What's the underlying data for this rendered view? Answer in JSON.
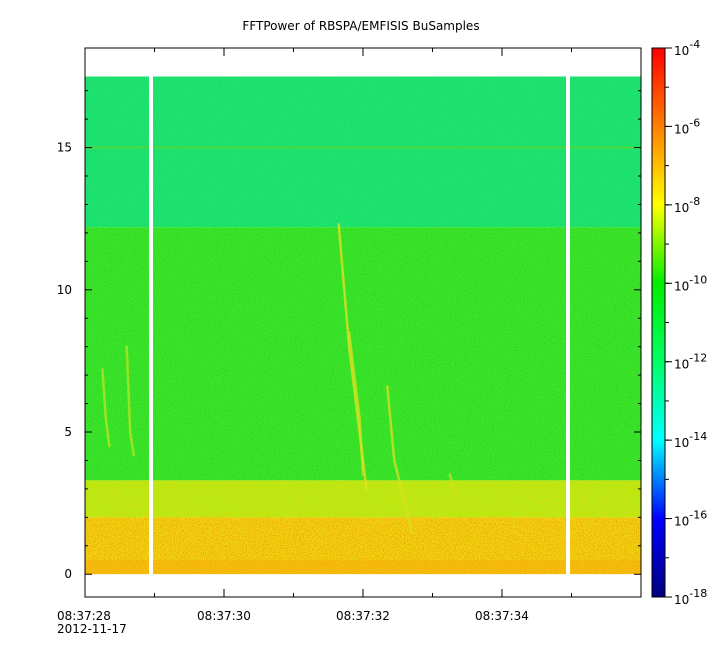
{
  "chart_data": {
    "type": "heatmap",
    "title": "FFTPower of RBSPA/EMFISIS  BuSamples",
    "xlabel": "",
    "ylabel": "",
    "date": "2012-11-17",
    "x_range": [
      "08:37:28",
      "08:37:36"
    ],
    "x_ticks": [
      {
        "time": "08:37:28",
        "label": "08:37:28"
      },
      {
        "time": "08:37:30",
        "label": "08:37:30"
      },
      {
        "time": "08:37:32",
        "label": "08:37:32"
      },
      {
        "time": "08:37:34",
        "label": "08:37:34"
      }
    ],
    "ylim": [
      -0.8,
      18.5
    ],
    "y_ticks": [
      0,
      5,
      10,
      15
    ],
    "data_frequency_range": [
      0,
      17.5
    ],
    "data_gaps": [
      {
        "time": "08:37:28.95"
      },
      {
        "time": "08:37:34.95"
      }
    ],
    "colorbar": {
      "scale": "log",
      "range": [
        1e-18,
        0.0001
      ],
      "tick_bases": [
        "10",
        "10",
        "10",
        "10",
        "10",
        "10",
        "10",
        "10"
      ],
      "tick_exponents": [
        "-18",
        "-16",
        "-14",
        "-12",
        "-10",
        "-8",
        "-6",
        "-4"
      ],
      "colormap": [
        "#000080",
        "#0000ff",
        "#00ffff",
        "#00ff66",
        "#00ee00",
        "#ffff00",
        "#ff8000",
        "#ff0000"
      ]
    },
    "bands": [
      {
        "freq": [
          12.2,
          17.5
        ],
        "color": "#22e36e"
      },
      {
        "freq": [
          3.3,
          12.2
        ],
        "color": "#3ee52c"
      },
      {
        "freq": [
          2.0,
          3.3
        ],
        "color": "#b6ea14"
      },
      {
        "freq": [
          0.5,
          2.0
        ],
        "color": "#f0d610"
      },
      {
        "freq": [
          0.0,
          0.5
        ],
        "color": "#f5c10c"
      }
    ],
    "features": [
      {
        "kind": "line",
        "freq": 15.0,
        "color": "#4fd83a"
      },
      {
        "kind": "chorus",
        "color": "#e8e020",
        "points": [
          [
            "08:37:31.65",
            12.3
          ],
          [
            "08:37:31.8",
            8.0
          ],
          [
            "08:37:31.95",
            5.0
          ],
          [
            "08:37:32.05",
            3.0
          ]
        ]
      },
      {
        "kind": "chorus",
        "color": "#d8e020",
        "points": [
          [
            "08:37:32.35",
            6.6
          ],
          [
            "08:37:32.45",
            4.0
          ],
          [
            "08:37:32.7",
            1.5
          ]
        ]
      },
      {
        "kind": "chorus",
        "color": "#d8e020",
        "points": [
          [
            "08:37:31.8",
            8.5
          ],
          [
            "08:37:31.95",
            5.5
          ],
          [
            "08:37:32.0",
            3.5
          ]
        ]
      },
      {
        "kind": "chorus",
        "color": "#c8e020",
        "points": [
          [
            "08:37:33.25",
            3.5
          ],
          [
            "08:37:33.4",
            2.2
          ]
        ]
      },
      {
        "kind": "chorus",
        "color": "#b8e620",
        "points": [
          [
            "08:37:28.25",
            7.2
          ],
          [
            "08:37:28.3",
            5.5
          ],
          [
            "08:37:28.35",
            4.5
          ]
        ]
      },
      {
        "kind": "chorus",
        "color": "#b8e620",
        "points": [
          [
            "08:37:28.6",
            8.0
          ],
          [
            "08:37:28.65",
            5.0
          ],
          [
            "08:37:28.7",
            4.2
          ]
        ]
      }
    ]
  }
}
